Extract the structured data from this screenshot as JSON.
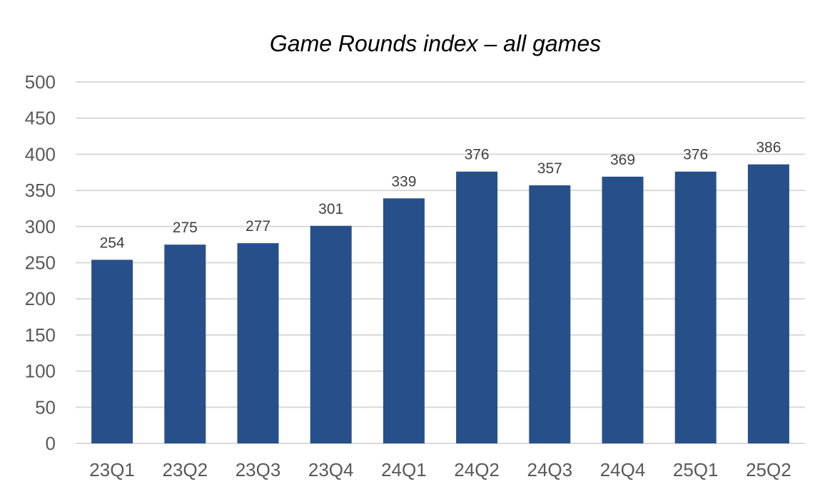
{
  "chart_data": {
    "type": "bar",
    "title": "Game Rounds index – all games",
    "xlabel": "",
    "ylabel": "",
    "categories": [
      "23Q1",
      "23Q2",
      "23Q3",
      "23Q4",
      "24Q1",
      "24Q2",
      "24Q3",
      "24Q4",
      "25Q1",
      "25Q2"
    ],
    "values": [
      254,
      275,
      277,
      301,
      339,
      376,
      357,
      369,
      376,
      386
    ],
    "ylim": [
      0,
      500
    ],
    "yticks": [
      0,
      50,
      100,
      150,
      200,
      250,
      300,
      350,
      400,
      450,
      500
    ],
    "grid": true,
    "legend": "none",
    "bar_color": "#27508a",
    "data_labels": true
  }
}
